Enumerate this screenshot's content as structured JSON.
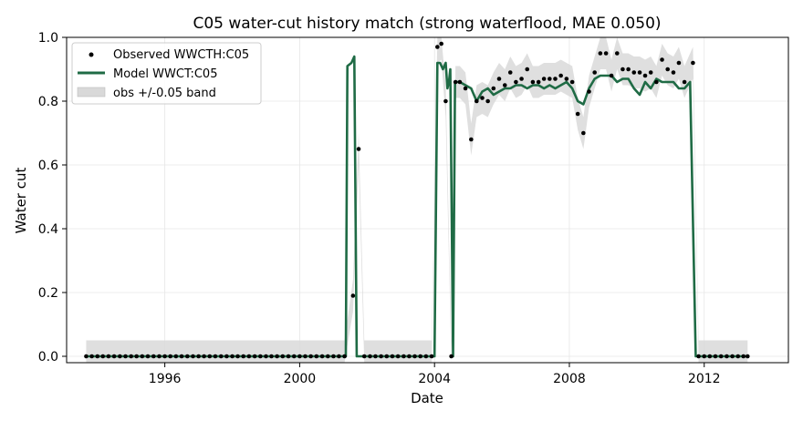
{
  "chart_data": {
    "type": "line",
    "title": "C05  water-cut history match  (strong waterflood, MAE 0.050)",
    "xlabel": "Date",
    "ylabel": "Water cut",
    "xlim": [
      "1993-02-01",
      "2014-07-01"
    ],
    "ylim": [
      -0.02,
      1.0
    ],
    "x_ticks": [
      "1996",
      "2000",
      "2004",
      "2008",
      "2012"
    ],
    "y_ticks": [
      "0.0",
      "0.2",
      "0.4",
      "0.6",
      "0.8",
      "1.0"
    ],
    "grid": true,
    "legend": {
      "placement": "top-left",
      "entries": [
        "Observed WWCTH:C05",
        "Model WWCT:C05",
        "obs +/-0.05 band"
      ]
    },
    "colors": {
      "observed": "#000000",
      "model": "#1f6b45",
      "band": "#d9d9d9"
    },
    "series": [
      {
        "name": "Observed WWCTH:C05",
        "kind": "scatter",
        "x": [
          "1993-09-01",
          "1993-11-01",
          "1994-01-01",
          "1994-03-01",
          "1994-05-01",
          "1994-07-01",
          "1994-09-01",
          "1994-11-01",
          "1995-01-01",
          "1995-03-01",
          "1995-05-01",
          "1995-07-01",
          "1995-09-01",
          "1995-11-01",
          "1996-01-01",
          "1996-03-01",
          "1996-05-01",
          "1996-07-01",
          "1996-09-01",
          "1996-11-01",
          "1997-01-01",
          "1997-03-01",
          "1997-05-01",
          "1997-07-01",
          "1997-09-01",
          "1997-11-01",
          "1998-01-01",
          "1998-03-01",
          "1998-05-01",
          "1998-07-01",
          "1998-09-01",
          "1998-11-01",
          "1999-01-01",
          "1999-03-01",
          "1999-05-01",
          "1999-07-01",
          "1999-09-01",
          "1999-11-01",
          "2000-01-01",
          "2000-03-01",
          "2000-05-01",
          "2000-07-01",
          "2000-09-01",
          "2000-11-01",
          "2001-01-01",
          "2001-03-01",
          "2001-05-01",
          "2001-08-01",
          "2001-10-01",
          "2001-12-01",
          "2002-02-01",
          "2002-04-01",
          "2002-06-01",
          "2002-08-01",
          "2002-10-01",
          "2002-12-01",
          "2003-02-01",
          "2003-04-01",
          "2003-06-01",
          "2003-08-01",
          "2003-10-01",
          "2003-12-01",
          "2004-02-01",
          "2004-03-15",
          "2004-05-01",
          "2004-07-01",
          "2004-08-15",
          "2004-10-01",
          "2004-12-01",
          "2005-02-01",
          "2005-04-01",
          "2005-06-01",
          "2005-08-01",
          "2005-10-01",
          "2005-12-01",
          "2006-02-01",
          "2006-04-01",
          "2006-06-01",
          "2006-08-01",
          "2006-10-01",
          "2006-12-01",
          "2007-02-01",
          "2007-04-01",
          "2007-06-01",
          "2007-08-01",
          "2007-10-01",
          "2007-12-01",
          "2008-02-01",
          "2008-04-01",
          "2008-06-01",
          "2008-08-01",
          "2008-10-01",
          "2008-12-01",
          "2009-02-01",
          "2009-04-01",
          "2009-06-01",
          "2009-08-01",
          "2009-10-01",
          "2009-12-01",
          "2010-02-01",
          "2010-04-01",
          "2010-06-01",
          "2010-08-01",
          "2010-10-01",
          "2010-12-01",
          "2011-02-01",
          "2011-04-01",
          "2011-06-01",
          "2011-09-01",
          "2011-11-01",
          "2012-01-01",
          "2012-03-01",
          "2012-05-01",
          "2012-07-01",
          "2012-09-01",
          "2012-11-01",
          "2013-01-01",
          "2013-03-01",
          "2013-04-15"
        ],
        "y": [
          0,
          0,
          0,
          0,
          0,
          0,
          0,
          0,
          0,
          0,
          0,
          0,
          0,
          0,
          0,
          0,
          0,
          0,
          0,
          0,
          0,
          0,
          0,
          0,
          0,
          0,
          0,
          0,
          0,
          0,
          0,
          0,
          0,
          0,
          0,
          0,
          0,
          0,
          0,
          0,
          0,
          0,
          0,
          0,
          0,
          0,
          0,
          0.19,
          0.65,
          0,
          0,
          0,
          0,
          0,
          0,
          0,
          0,
          0,
          0,
          0,
          0,
          0,
          0.97,
          0.98,
          0.8,
          0,
          0.86,
          0.86,
          0.84,
          0.68,
          0.8,
          0.81,
          0.8,
          0.84,
          0.87,
          0.85,
          0.89,
          0.86,
          0.87,
          0.9,
          0.86,
          0.86,
          0.87,
          0.87,
          0.87,
          0.88,
          0.87,
          0.86,
          0.76,
          0.7,
          0.83,
          0.89,
          0.95,
          0.95,
          0.88,
          0.95,
          0.9,
          0.9,
          0.89,
          0.89,
          0.88,
          0.89,
          0.86,
          0.93,
          0.9,
          0.89,
          0.92,
          0.86,
          0.92,
          0,
          0,
          0,
          0,
          0,
          0,
          0,
          0,
          0,
          0
        ]
      },
      {
        "name": "Model WWCT:C05",
        "kind": "line",
        "x": [
          "1993-09-01",
          "2001-05-15",
          "2001-06-01",
          "2001-07-15",
          "2001-08-15",
          "2001-09-10",
          "2001-10-01",
          "2004-01-01",
          "2004-02-01",
          "2004-03-01",
          "2004-04-01",
          "2004-05-01",
          "2004-05-20",
          "2004-06-05",
          "2004-06-20",
          "2004-07-20",
          "2004-08-10",
          "2004-08-25",
          "2004-10-01",
          "2004-12-01",
          "2005-02-01",
          "2005-04-01",
          "2005-06-01",
          "2005-08-01",
          "2005-10-01",
          "2005-12-01",
          "2006-02-01",
          "2006-04-01",
          "2006-06-01",
          "2006-08-01",
          "2006-10-01",
          "2006-12-01",
          "2007-02-01",
          "2007-04-01",
          "2007-06-01",
          "2007-08-01",
          "2007-10-01",
          "2007-12-01",
          "2008-02-01",
          "2008-04-01",
          "2008-06-01",
          "2008-08-01",
          "2008-10-01",
          "2008-12-01",
          "2009-02-01",
          "2009-04-01",
          "2009-06-01",
          "2009-08-01",
          "2009-10-01",
          "2009-12-01",
          "2010-02-01",
          "2010-04-01",
          "2010-06-01",
          "2010-08-01",
          "2010-10-01",
          "2010-12-01",
          "2011-02-01",
          "2011-04-01",
          "2011-06-01",
          "2011-08-01",
          "2011-10-01",
          "2013-04-15"
        ],
        "y": [
          0,
          0,
          0.91,
          0.92,
          0.94,
          0,
          0,
          0,
          0.92,
          0.92,
          0.9,
          0.92,
          0.84,
          0.86,
          0.9,
          0,
          0.86,
          0.86,
          0.86,
          0.85,
          0.84,
          0.8,
          0.83,
          0.84,
          0.82,
          0.83,
          0.84,
          0.84,
          0.85,
          0.85,
          0.84,
          0.85,
          0.85,
          0.84,
          0.85,
          0.84,
          0.85,
          0.86,
          0.84,
          0.8,
          0.79,
          0.84,
          0.87,
          0.88,
          0.88,
          0.88,
          0.86,
          0.87,
          0.87,
          0.84,
          0.82,
          0.86,
          0.84,
          0.87,
          0.86,
          0.86,
          0.86,
          0.84,
          0.84,
          0.86,
          0,
          0
        ]
      }
    ]
  }
}
